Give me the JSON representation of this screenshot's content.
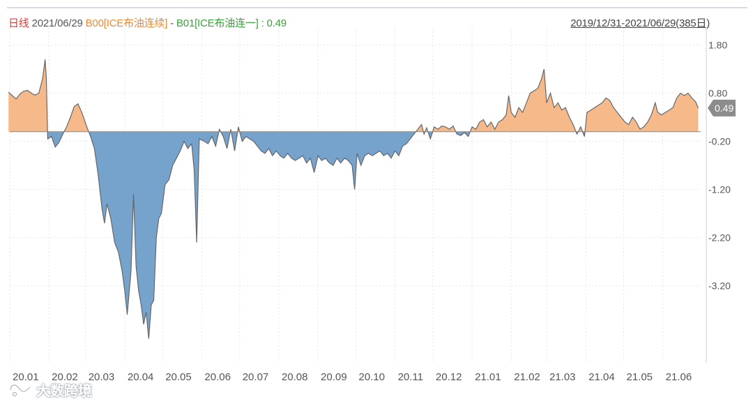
{
  "header": {
    "period": "日线",
    "date": "2021/06/29",
    "series_a": "B00[ICE布油连续]",
    "separator": " - ",
    "series_b": "B01[ICE布油连一]",
    "value_text": " : 0.49",
    "range": "2019/12/31-2021/06/29(385日)"
  },
  "watermark": {
    "text": "大数跨境"
  },
  "colors": {
    "positive": "#f6b98a",
    "negative": "#76a3cc",
    "line": "#666666",
    "grid": "#e6e6e6",
    "current_badge": "#8c8c8c"
  },
  "chart_data": {
    "type": "area",
    "title": "",
    "ylim": [
      -4.8,
      2.3
    ],
    "yticks": [
      "1.80",
      "0.80",
      "-0.20",
      "-1.20",
      "-2.20",
      "-3.20"
    ],
    "xticks": [
      "20.01",
      "20.02",
      "20.03",
      "20.04",
      "20.05",
      "20.06",
      "20.07",
      "20.08",
      "20.09",
      "20.10",
      "20.11",
      "20.12",
      "21.01",
      "21.02",
      "21.03",
      "21.04",
      "21.05",
      "21.06"
    ],
    "current_value": "0.49",
    "points": [
      [
        "2019-12-31",
        0.82
      ],
      [
        "2020-01-03",
        0.75
      ],
      [
        "2020-01-06",
        0.68
      ],
      [
        "2020-01-09",
        0.78
      ],
      [
        "2020-01-12",
        0.84
      ],
      [
        "2020-01-15",
        0.86
      ],
      [
        "2020-01-18",
        0.8
      ],
      [
        "2020-01-21",
        0.76
      ],
      [
        "2020-01-24",
        0.8
      ],
      [
        "2020-01-27",
        1.1
      ],
      [
        "2020-01-29",
        1.5
      ],
      [
        "2020-01-30",
        1.1
      ],
      [
        "2020-01-31",
        -0.15
      ],
      [
        "2020-02-03",
        -0.1
      ],
      [
        "2020-02-06",
        -0.32
      ],
      [
        "2020-02-09",
        -0.22
      ],
      [
        "2020-02-12",
        -0.05
      ],
      [
        "2020-02-15",
        0.1
      ],
      [
        "2020-02-18",
        0.3
      ],
      [
        "2020-02-21",
        0.52
      ],
      [
        "2020-02-24",
        0.58
      ],
      [
        "2020-02-27",
        0.4
      ],
      [
        "2020-03-02",
        0.1
      ],
      [
        "2020-03-05",
        -0.1
      ],
      [
        "2020-03-08",
        -0.35
      ],
      [
        "2020-03-11",
        -0.9
      ],
      [
        "2020-03-14",
        -1.6
      ],
      [
        "2020-03-16",
        -1.9
      ],
      [
        "2020-03-18",
        -1.5
      ],
      [
        "2020-03-21",
        -1.8
      ],
      [
        "2020-03-24",
        -2.3
      ],
      [
        "2020-03-27",
        -2.5
      ],
      [
        "2020-03-30",
        -2.9
      ],
      [
        "2020-04-01",
        -3.3
      ],
      [
        "2020-04-03",
        -3.8
      ],
      [
        "2020-04-06",
        -2.9
      ],
      [
        "2020-04-08",
        -1.3
      ],
      [
        "2020-04-10",
        -2.8
      ],
      [
        "2020-04-12",
        -3.3
      ],
      [
        "2020-04-14",
        -3.6
      ],
      [
        "2020-04-16",
        -4.0
      ],
      [
        "2020-04-18",
        -3.75
      ],
      [
        "2020-04-20",
        -4.3
      ],
      [
        "2020-04-22",
        -3.6
      ],
      [
        "2020-04-24",
        -3.5
      ],
      [
        "2020-04-26",
        -2.2
      ],
      [
        "2020-04-28",
        -1.8
      ],
      [
        "2020-04-30",
        -1.7
      ],
      [
        "2020-05-03",
        -1.1
      ],
      [
        "2020-05-06",
        -1.0
      ],
      [
        "2020-05-09",
        -0.7
      ],
      [
        "2020-05-12",
        -0.55
      ],
      [
        "2020-05-15",
        -0.4
      ],
      [
        "2020-05-18",
        -0.2
      ],
      [
        "2020-05-21",
        -0.35
      ],
      [
        "2020-05-24",
        -0.25
      ],
      [
        "2020-05-26",
        -0.8
      ],
      [
        "2020-05-28",
        -2.3
      ],
      [
        "2020-05-30",
        -0.15
      ],
      [
        "2020-06-03",
        -0.2
      ],
      [
        "2020-06-06",
        -0.25
      ],
      [
        "2020-06-09",
        -0.1
      ],
      [
        "2020-06-12",
        -0.3
      ],
      [
        "2020-06-15",
        0.05
      ],
      [
        "2020-06-18",
        -0.1
      ],
      [
        "2020-06-21",
        -0.35
      ],
      [
        "2020-06-24",
        0.05
      ],
      [
        "2020-06-27",
        -0.4
      ],
      [
        "2020-06-30",
        0.1
      ],
      [
        "2020-07-03",
        -0.2
      ],
      [
        "2020-07-06",
        -0.1
      ],
      [
        "2020-07-09",
        -0.15
      ],
      [
        "2020-07-12",
        -0.2
      ],
      [
        "2020-07-15",
        -0.3
      ],
      [
        "2020-07-18",
        -0.4
      ],
      [
        "2020-07-21",
        -0.45
      ],
      [
        "2020-07-24",
        -0.35
      ],
      [
        "2020-07-27",
        -0.5
      ],
      [
        "2020-07-30",
        -0.4
      ],
      [
        "2020-08-02",
        -0.5
      ],
      [
        "2020-08-05",
        -0.55
      ],
      [
        "2020-08-08",
        -0.45
      ],
      [
        "2020-08-11",
        -0.55
      ],
      [
        "2020-08-14",
        -0.6
      ],
      [
        "2020-08-17",
        -0.55
      ],
      [
        "2020-08-20",
        -0.5
      ],
      [
        "2020-08-23",
        -0.65
      ],
      [
        "2020-08-26",
        -0.55
      ],
      [
        "2020-08-29",
        -0.85
      ],
      [
        "2020-09-01",
        -0.5
      ],
      [
        "2020-09-04",
        -0.6
      ],
      [
        "2020-09-07",
        -0.55
      ],
      [
        "2020-09-10",
        -0.65
      ],
      [
        "2020-09-13",
        -0.7
      ],
      [
        "2020-09-16",
        -0.55
      ],
      [
        "2020-09-19",
        -0.65
      ],
      [
        "2020-09-22",
        -0.55
      ],
      [
        "2020-09-25",
        -0.6
      ],
      [
        "2020-09-28",
        -0.7
      ],
      [
        "2020-09-30",
        -1.2
      ],
      [
        "2020-10-02",
        -0.45
      ],
      [
        "2020-10-05",
        -0.7
      ],
      [
        "2020-10-08",
        -0.5
      ],
      [
        "2020-10-11",
        -0.45
      ],
      [
        "2020-10-14",
        -0.5
      ],
      [
        "2020-10-17",
        -0.45
      ],
      [
        "2020-10-20",
        -0.4
      ],
      [
        "2020-10-23",
        -0.5
      ],
      [
        "2020-10-26",
        -0.45
      ],
      [
        "2020-10-29",
        -0.55
      ],
      [
        "2020-11-01",
        -0.4
      ],
      [
        "2020-11-04",
        -0.5
      ],
      [
        "2020-11-07",
        -0.3
      ],
      [
        "2020-11-10",
        -0.25
      ],
      [
        "2020-11-13",
        -0.15
      ],
      [
        "2020-11-16",
        -0.05
      ],
      [
        "2020-11-19",
        0.05
      ],
      [
        "2020-11-22",
        0.15
      ],
      [
        "2020-11-24",
        -0.05
      ],
      [
        "2020-11-26",
        0.08
      ],
      [
        "2020-11-29",
        -0.15
      ],
      [
        "2020-12-02",
        0.1
      ],
      [
        "2020-12-05",
        0.05
      ],
      [
        "2020-12-08",
        0.12
      ],
      [
        "2020-12-11",
        0.1
      ],
      [
        "2020-12-14",
        0.05
      ],
      [
        "2020-12-17",
        0.12
      ],
      [
        "2020-12-20",
        -0.05
      ],
      [
        "2020-12-23",
        -0.08
      ],
      [
        "2020-12-26",
        -0.02
      ],
      [
        "2020-12-29",
        -0.1
      ],
      [
        "2021-01-01",
        0.1
      ],
      [
        "2021-01-04",
        0.05
      ],
      [
        "2021-01-07",
        0.2
      ],
      [
        "2021-01-10",
        0.25
      ],
      [
        "2021-01-13",
        0.1
      ],
      [
        "2021-01-16",
        0.2
      ],
      [
        "2021-01-19",
        0.05
      ],
      [
        "2021-01-22",
        0.2
      ],
      [
        "2021-01-25",
        0.25
      ],
      [
        "2021-01-28",
        0.35
      ],
      [
        "2021-01-30",
        0.75
      ],
      [
        "2021-02-01",
        0.4
      ],
      [
        "2021-02-04",
        0.3
      ],
      [
        "2021-02-07",
        0.5
      ],
      [
        "2021-02-10",
        0.4
      ],
      [
        "2021-02-13",
        0.6
      ],
      [
        "2021-02-16",
        0.8
      ],
      [
        "2021-02-19",
        0.85
      ],
      [
        "2021-02-22",
        0.9
      ],
      [
        "2021-02-25",
        1.1
      ],
      [
        "2021-02-27",
        1.3
      ],
      [
        "2021-03-01",
        0.6
      ],
      [
        "2021-03-04",
        0.8
      ],
      [
        "2021-03-07",
        0.5
      ],
      [
        "2021-03-10",
        0.6
      ],
      [
        "2021-03-13",
        0.45
      ],
      [
        "2021-03-16",
        0.5
      ],
      [
        "2021-03-19",
        0.3
      ],
      [
        "2021-03-22",
        0.15
      ],
      [
        "2021-03-25",
        -0.05
      ],
      [
        "2021-03-28",
        0.1
      ],
      [
        "2021-03-31",
        -0.1
      ],
      [
        "2021-04-02",
        0.4
      ],
      [
        "2021-04-05",
        0.45
      ],
      [
        "2021-04-08",
        0.5
      ],
      [
        "2021-04-11",
        0.55
      ],
      [
        "2021-04-14",
        0.6
      ],
      [
        "2021-04-17",
        0.7
      ],
      [
        "2021-04-20",
        0.65
      ],
      [
        "2021-04-23",
        0.5
      ],
      [
        "2021-04-26",
        0.4
      ],
      [
        "2021-04-29",
        0.3
      ],
      [
        "2021-05-02",
        0.2
      ],
      [
        "2021-05-05",
        0.15
      ],
      [
        "2021-05-08",
        0.3
      ],
      [
        "2021-05-11",
        0.2
      ],
      [
        "2021-05-14",
        0.05
      ],
      [
        "2021-05-17",
        0.1
      ],
      [
        "2021-05-20",
        0.2
      ],
      [
        "2021-05-23",
        0.35
      ],
      [
        "2021-05-26",
        0.6
      ],
      [
        "2021-05-28",
        0.4
      ],
      [
        "2021-05-31",
        0.35
      ],
      [
        "2021-06-03",
        0.4
      ],
      [
        "2021-06-06",
        0.45
      ],
      [
        "2021-06-09",
        0.5
      ],
      [
        "2021-06-12",
        0.7
      ],
      [
        "2021-06-15",
        0.8
      ],
      [
        "2021-06-18",
        0.75
      ],
      [
        "2021-06-21",
        0.8
      ],
      [
        "2021-06-24",
        0.7
      ],
      [
        "2021-06-27",
        0.62
      ],
      [
        "2021-06-29",
        0.49
      ]
    ]
  }
}
